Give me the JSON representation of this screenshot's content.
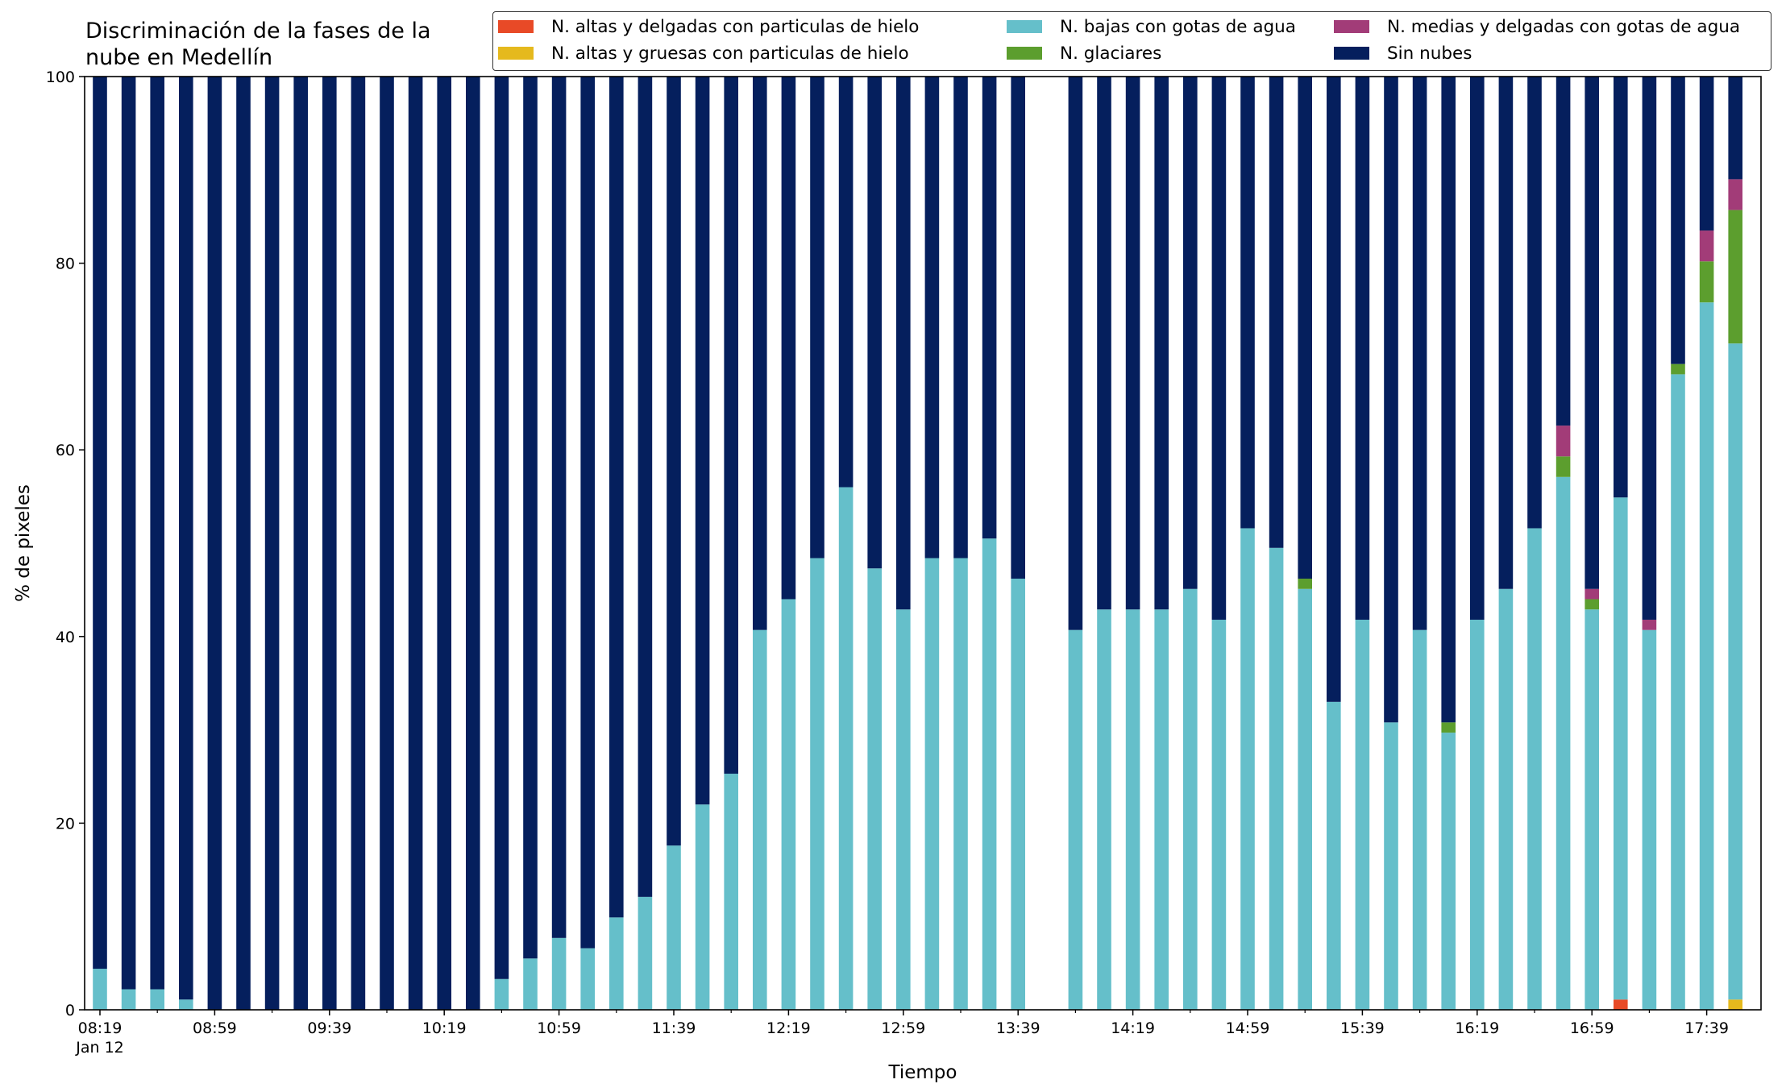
{
  "chart_data": {
    "type": "bar",
    "stacked": true,
    "title": "Discriminación de la fases de la nube en Medellín",
    "title_lines": [
      "Discriminación de la fases de la",
      "nube en Medellín"
    ],
    "xlabel": "Tiempo",
    "ylabel": "% de pixeles",
    "ylim": [
      0,
      100
    ],
    "yticks": [
      "0",
      "20",
      "40",
      "60",
      "80",
      "100"
    ],
    "xtick_labels": [
      "08:19",
      "08:59",
      "09:39",
      "10:19",
      "10:59",
      "11:39",
      "12:19",
      "12:59",
      "13:39",
      "14:19",
      "14:59",
      "15:39",
      "16:19",
      "16:59",
      "17:39"
    ],
    "xtick_date": "Jan 12",
    "legend_location": "top-right",
    "grid": false,
    "bar_interval_minutes": 10,
    "start_time": "08:19",
    "categories": [
      "08:19",
      "08:29",
      "08:39",
      "08:49",
      "08:59",
      "09:09",
      "09:19",
      "09:29",
      "09:39",
      "09:49",
      "09:59",
      "10:09",
      "10:19",
      "10:29",
      "10:39",
      "10:49",
      "10:59",
      "11:09",
      "11:19",
      "11:29",
      "11:39",
      "11:49",
      "11:59",
      "12:09",
      "12:19",
      "12:29",
      "12:39",
      "12:49",
      "12:59",
      "13:09",
      "13:19",
      "13:29",
      "13:39",
      "13:49",
      "13:59",
      "14:09",
      "14:19",
      "14:29",
      "14:39",
      "14:49",
      "14:59",
      "15:09",
      "15:19",
      "15:29",
      "15:39",
      "15:49",
      "15:59",
      "16:09",
      "16:19",
      "16:29",
      "16:39",
      "16:49",
      "16:59",
      "17:09",
      "17:19",
      "17:29",
      "17:39",
      "17:49"
    ],
    "series": [
      {
        "name": "N. altas y delgadas con particulas de hielo",
        "color": "#e84a27",
        "values": [
          0,
          0,
          0,
          0,
          0,
          0,
          0,
          0,
          0,
          0,
          0,
          0,
          0,
          0,
          0,
          0,
          0,
          0,
          0,
          0,
          0,
          0,
          0,
          0,
          0,
          0,
          0,
          0,
          0,
          0,
          0,
          0,
          0,
          0,
          0,
          0,
          0,
          0,
          0,
          0,
          0,
          0,
          0,
          0,
          0,
          0,
          0,
          0,
          0,
          0,
          0,
          0,
          0,
          1.1,
          0,
          0,
          0,
          0
        ]
      },
      {
        "name": "N. altas y gruesas con particulas de hielo",
        "color": "#e5b91d",
        "values": [
          0,
          0,
          0,
          0,
          0,
          0,
          0,
          0,
          0,
          0,
          0,
          0,
          0,
          0,
          0,
          0,
          0,
          0,
          0,
          0,
          0,
          0,
          0,
          0,
          0,
          0,
          0,
          0,
          0,
          0,
          0,
          0,
          0,
          0,
          0,
          0,
          0,
          0,
          0,
          0,
          0,
          0,
          0,
          0,
          0,
          0,
          0,
          0,
          0,
          0,
          0,
          0,
          0,
          0,
          0,
          0,
          0,
          1.1
        ]
      },
      {
        "name": "N. bajas con gotas de agua",
        "color": "#65bfca",
        "values": [
          4.4,
          2.2,
          2.2,
          1.1,
          0,
          0,
          0,
          0,
          0,
          0,
          0,
          0,
          0,
          0,
          3.3,
          5.5,
          7.7,
          6.6,
          9.9,
          12.1,
          17.6,
          22.0,
          25.3,
          40.7,
          44.0,
          48.4,
          56.0,
          47.3,
          42.9,
          48.4,
          48.4,
          50.5,
          46.2,
          null,
          40.7,
          42.9,
          42.9,
          42.9,
          45.1,
          41.8,
          51.6,
          49.5,
          45.1,
          33.0,
          41.8,
          30.8,
          40.7,
          29.7,
          41.8,
          45.1,
          51.6,
          57.1,
          42.9,
          53.8,
          40.7,
          68.1,
          75.8,
          70.3
        ]
      },
      {
        "name": "N. glaciares",
        "color": "#5c9e2e",
        "values": [
          0,
          0,
          0,
          0,
          0,
          0,
          0,
          0,
          0,
          0,
          0,
          0,
          0,
          0,
          0,
          0,
          0,
          0,
          0,
          0,
          0,
          0,
          0,
          0,
          0,
          0,
          0,
          0,
          0,
          0,
          0,
          0,
          0,
          0,
          0,
          0,
          0,
          0,
          0,
          0,
          0,
          0,
          1.1,
          0,
          0,
          0,
          0,
          1.1,
          0,
          0,
          0,
          2.2,
          1.1,
          0,
          0,
          1.1,
          4.4,
          14.3
        ]
      },
      {
        "name": "N. medias y delgadas con gotas de agua",
        "color": "#a23c78",
        "values": [
          0,
          0,
          0,
          0,
          0,
          0,
          0,
          0,
          0,
          0,
          0,
          0,
          0,
          0,
          0,
          0,
          0,
          0,
          0,
          0,
          0,
          0,
          0,
          0,
          0,
          0,
          0,
          0,
          0,
          0,
          0,
          0,
          0,
          0,
          0,
          0,
          0,
          0,
          0,
          0,
          0,
          0,
          0,
          0,
          0,
          0,
          0,
          0,
          0,
          0,
          0,
          3.3,
          1.1,
          0,
          1.1,
          0,
          3.3,
          3.3
        ]
      },
      {
        "name": "Sin nubes",
        "color": "#051f5d",
        "values": [
          95.6,
          97.8,
          97.8,
          98.9,
          100,
          100,
          100,
          100,
          100,
          100,
          100,
          100,
          100,
          100,
          96.7,
          94.5,
          92.3,
          93.4,
          90.1,
          87.9,
          82.4,
          78.0,
          74.7,
          59.3,
          56.0,
          51.6,
          44.0,
          52.7,
          57.1,
          51.6,
          51.6,
          49.5,
          53.8,
          null,
          59.3,
          57.1,
          57.1,
          57.1,
          54.9,
          58.2,
          48.4,
          50.5,
          53.8,
          67.0,
          58.2,
          69.2,
          59.3,
          69.2,
          58.2,
          54.9,
          48.4,
          37.4,
          54.9,
          45.1,
          58.2,
          30.8,
          16.5,
          11.0
        ]
      }
    ]
  }
}
